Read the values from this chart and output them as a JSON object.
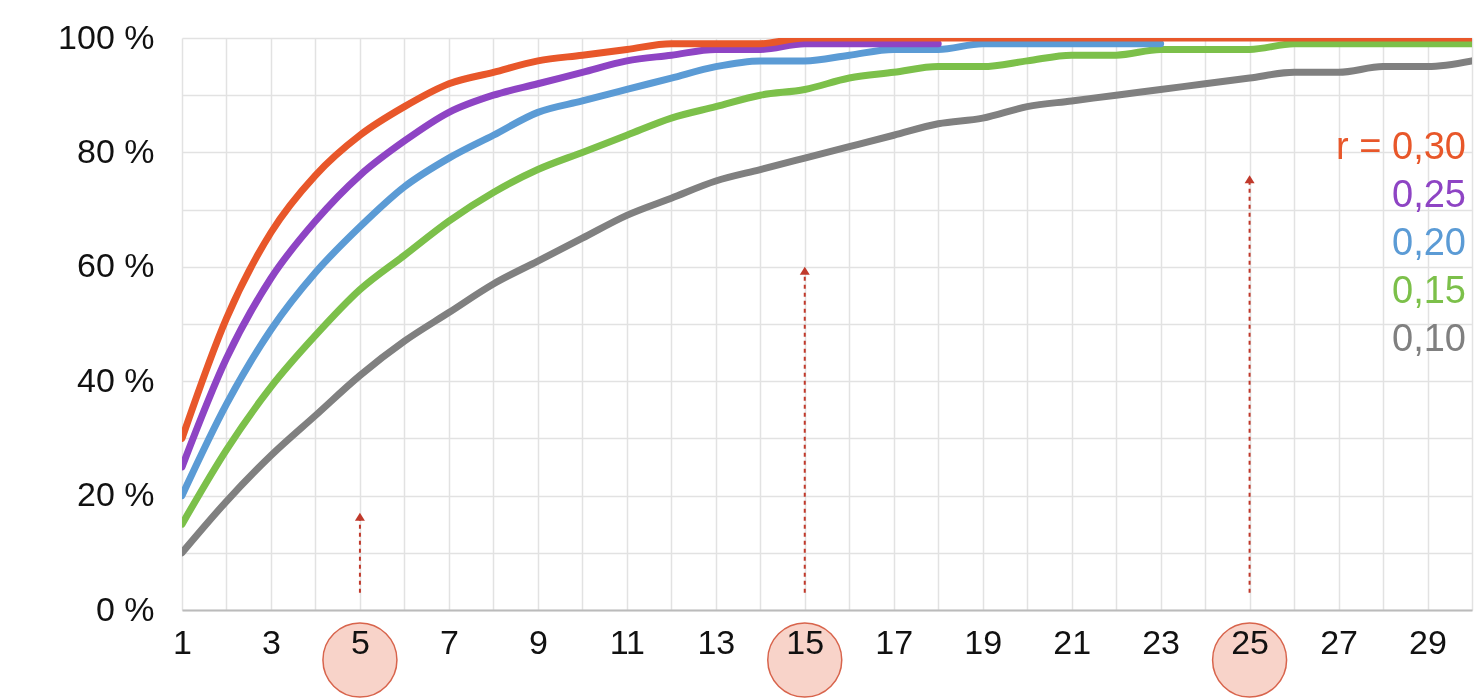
{
  "chart_data": {
    "type": "line",
    "x": [
      1,
      2,
      3,
      4,
      5,
      6,
      7,
      8,
      9,
      10,
      11,
      12,
      13,
      14,
      15,
      16,
      17,
      18,
      19,
      20,
      21,
      22,
      23,
      24,
      25,
      26,
      27,
      28,
      29,
      30
    ],
    "series": [
      {
        "name": "r = 0,30",
        "color": "#e8572a",
        "values": [
          30,
          51,
          66,
          76,
          83,
          88,
          92,
          94,
          96,
          97,
          98,
          99,
          99,
          99,
          100,
          100,
          100,
          100,
          100,
          100,
          100,
          100,
          100,
          100,
          100,
          100,
          100,
          100,
          100,
          100
        ]
      },
      {
        "name": "0,25",
        "color": "#8e44c4",
        "values": [
          25,
          44,
          58,
          68,
          76,
          82,
          87,
          90,
          92,
          94,
          96,
          97,
          98,
          98,
          99,
          99,
          99,
          99,
          null,
          null,
          null,
          null,
          null,
          null,
          null,
          null,
          null,
          null,
          null,
          null
        ]
      },
      {
        "name": "0,20",
        "color": "#5b9bd5",
        "values": [
          20,
          36,
          49,
          59,
          67,
          74,
          79,
          83,
          87,
          89,
          91,
          93,
          95,
          96,
          96,
          97,
          98,
          98,
          99,
          99,
          99,
          99,
          99,
          null,
          null,
          null,
          null,
          null,
          null,
          null
        ]
      },
      {
        "name": "0,15",
        "color": "#7cc04a",
        "values": [
          15,
          28,
          39,
          48,
          56,
          62,
          68,
          73,
          77,
          80,
          83,
          86,
          88,
          90,
          91,
          93,
          94,
          95,
          95,
          96,
          97,
          97,
          98,
          98,
          98,
          99,
          99,
          99,
          99,
          99
        ]
      },
      {
        "name": "0,10",
        "color": "#808080",
        "values": [
          10,
          19,
          27,
          34,
          41,
          47,
          52,
          57,
          61,
          65,
          69,
          72,
          75,
          77,
          79,
          81,
          83,
          85,
          86,
          88,
          89,
          90,
          91,
          92,
          93,
          94,
          94,
          95,
          95,
          96
        ]
      }
    ],
    "xlim": [
      1,
      30
    ],
    "xticks": [
      1,
      {
        "value": 2,
        "label": null
      },
      3,
      {
        "value": 4,
        "label": null
      },
      5,
      {
        "value": 6,
        "label": null
      },
      7,
      {
        "value": 8,
        "label": null
      },
      9,
      {
        "value": 10,
        "label": null
      },
      11,
      {
        "value": 12,
        "label": null
      },
      13,
      {
        "value": 14,
        "label": null
      },
      15,
      {
        "value": 16,
        "label": null
      },
      17,
      {
        "value": 18,
        "label": null
      },
      19,
      {
        "value": 20,
        "label": null
      },
      21,
      {
        "value": 22,
        "label": null
      },
      23,
      {
        "value": 24,
        "label": null
      },
      25,
      {
        "value": 26,
        "label": null
      },
      27,
      {
        "value": 28,
        "label": null
      },
      29,
      {
        "value": 30,
        "label": null
      }
    ],
    "ylim": [
      0,
      100
    ],
    "yticks": [
      {
        "value": 0,
        "label": "0 %"
      },
      {
        "value": 10,
        "label": null
      },
      {
        "value": 20,
        "label": "20 %"
      },
      {
        "value": 30,
        "label": null
      },
      {
        "value": 40,
        "label": "40 %"
      },
      {
        "value": 50,
        "label": null
      },
      {
        "value": 60,
        "label": "60 %"
      },
      {
        "value": 70,
        "label": null
      },
      {
        "value": 80,
        "label": "80 %"
      },
      {
        "value": 90,
        "label": null
      },
      {
        "value": 100,
        "label": "100 %"
      }
    ],
    "grid": true,
    "legend": "right",
    "marker": "none",
    "line_style": "solid"
  }
}
